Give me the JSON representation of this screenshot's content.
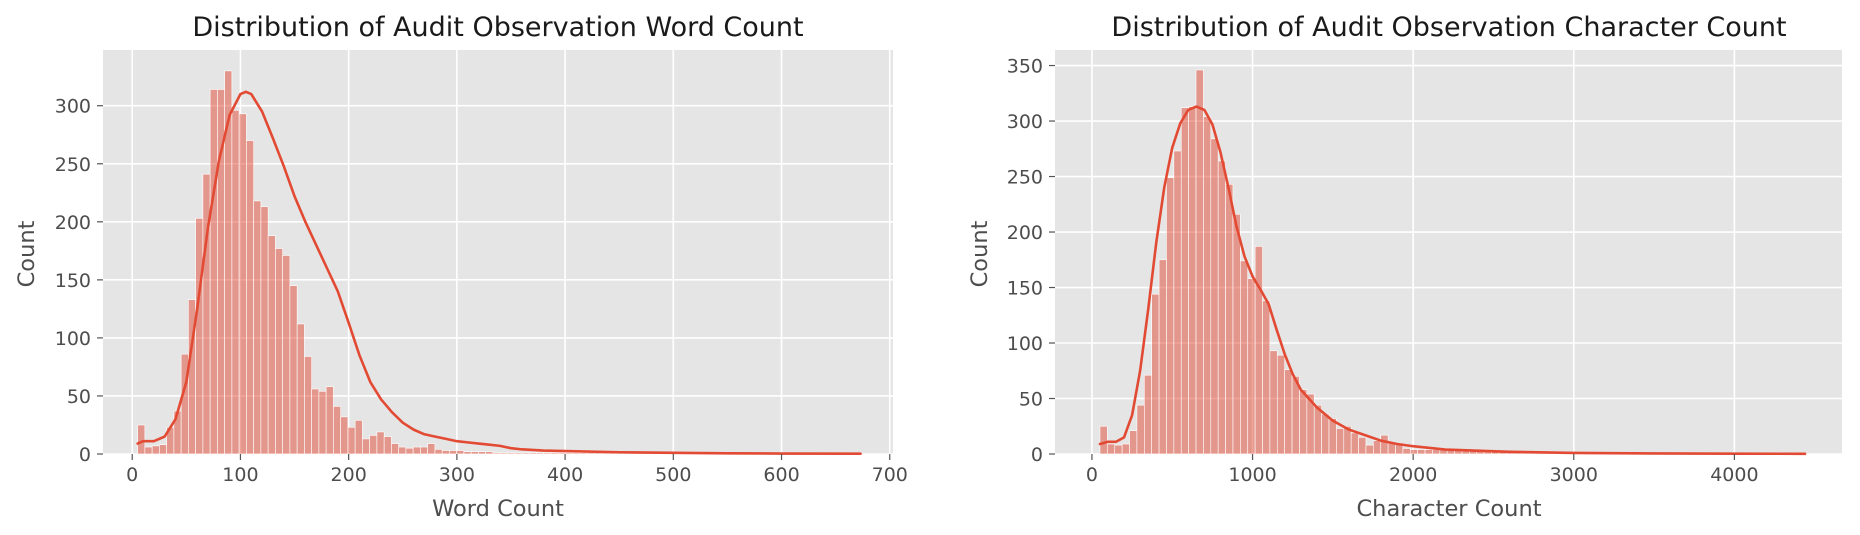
{
  "chart_data": [
    {
      "type": "histogram",
      "title": "Distribution of Audit Observation Word Count",
      "xlabel": "Word Count",
      "ylabel": "Count",
      "xlim": [
        -27,
        703
      ],
      "ylim": [
        0,
        348
      ],
      "xticks": [
        0,
        100,
        200,
        300,
        400,
        500,
        600,
        700
      ],
      "yticks": [
        0,
        50,
        100,
        150,
        200,
        250,
        300
      ],
      "grid": true,
      "bin_width": 6.7,
      "bins_start": 5,
      "counts": [
        25,
        6,
        7,
        8,
        23,
        37,
        86,
        133,
        203,
        241,
        314,
        314,
        330,
        296,
        293,
        270,
        218,
        213,
        188,
        177,
        171,
        145,
        112,
        84,
        56,
        54,
        58,
        41,
        32,
        23,
        29,
        13,
        16,
        19,
        15,
        9,
        6,
        5,
        6,
        6,
        9,
        4,
        3,
        3,
        3,
        2,
        2,
        2,
        2,
        1,
        1,
        1,
        1,
        1,
        1,
        1,
        1,
        1,
        1,
        1,
        1,
        1,
        1,
        1,
        1,
        1,
        1,
        1,
        1,
        1,
        1,
        1,
        1,
        1,
        1,
        1,
        1,
        1,
        1,
        1,
        1,
        1,
        1,
        1,
        1,
        1,
        1,
        1,
        1,
        1,
        1,
        1,
        1,
        1,
        1,
        1,
        1,
        1,
        1,
        1
      ],
      "kde_x": [
        5,
        10,
        20,
        30,
        40,
        50,
        60,
        70,
        80,
        90,
        100,
        105,
        110,
        120,
        130,
        140,
        150,
        160,
        170,
        180,
        190,
        200,
        210,
        220,
        230,
        240,
        250,
        260,
        270,
        280,
        290,
        300,
        310,
        320,
        330,
        340,
        350,
        360,
        380,
        400,
        450,
        500,
        550,
        600,
        673
      ],
      "kde_y": [
        9,
        11,
        11,
        15,
        30,
        62,
        125,
        195,
        252,
        292,
        310,
        312,
        310,
        295,
        272,
        248,
        222,
        200,
        180,
        160,
        140,
        113,
        85,
        62,
        47,
        36,
        27,
        21,
        17,
        15,
        13,
        11,
        10,
        9,
        8,
        7,
        5,
        4,
        3,
        2.5,
        1.5,
        1,
        0.6,
        0.4,
        0.3
      ],
      "color": "#e24a33"
    },
    {
      "type": "histogram",
      "title": "Distribution of Audit Observation Character Count",
      "xlabel": "Character Count",
      "ylabel": "Count",
      "xlim": [
        -230,
        4670
      ],
      "ylim": [
        0,
        364
      ],
      "xticks": [
        0,
        1000,
        2000,
        3000,
        4000
      ],
      "yticks": [
        0,
        50,
        100,
        150,
        200,
        250,
        300,
        350
      ],
      "grid": true,
      "bin_width": 46,
      "bins_start": 50,
      "counts": [
        25,
        9,
        8,
        9,
        21,
        44,
        71,
        144,
        175,
        249,
        273,
        312,
        313,
        346,
        304,
        284,
        264,
        243,
        216,
        174,
        158,
        187,
        138,
        93,
        89,
        76,
        70,
        58,
        54,
        44,
        36,
        32,
        23,
        25,
        19,
        15,
        8,
        12,
        17,
        10,
        9,
        5,
        4,
        4,
        4,
        4,
        4,
        4,
        3,
        3,
        3,
        3,
        2,
        2,
        2,
        2,
        2,
        1,
        1,
        1,
        1,
        1,
        1,
        1,
        1,
        1,
        1,
        1,
        1,
        1,
        1,
        1,
        1,
        1,
        1,
        1,
        1,
        1,
        1,
        1,
        1,
        1,
        1,
        1,
        1,
        1,
        1,
        1,
        1,
        1,
        1,
        1,
        1,
        1
      ],
      "kde_x": [
        50,
        100,
        150,
        200,
        250,
        300,
        350,
        400,
        450,
        500,
        550,
        600,
        650,
        700,
        750,
        800,
        850,
        900,
        950,
        1000,
        1050,
        1100,
        1150,
        1200,
        1250,
        1300,
        1400,
        1500,
        1600,
        1700,
        1800,
        1900,
        2000,
        2200,
        2400,
        2600,
        3000,
        3500,
        4000,
        4440
      ],
      "kde_y": [
        9,
        11,
        11,
        15,
        35,
        75,
        130,
        190,
        240,
        276,
        298,
        310,
        313,
        310,
        297,
        272,
        240,
        205,
        178,
        160,
        148,
        135,
        112,
        90,
        72,
        58,
        42,
        30,
        22,
        17,
        12,
        9,
        7,
        4,
        3,
        2,
        1,
        0.5,
        0.3,
        0.2
      ],
      "color": "#e24a33"
    }
  ]
}
